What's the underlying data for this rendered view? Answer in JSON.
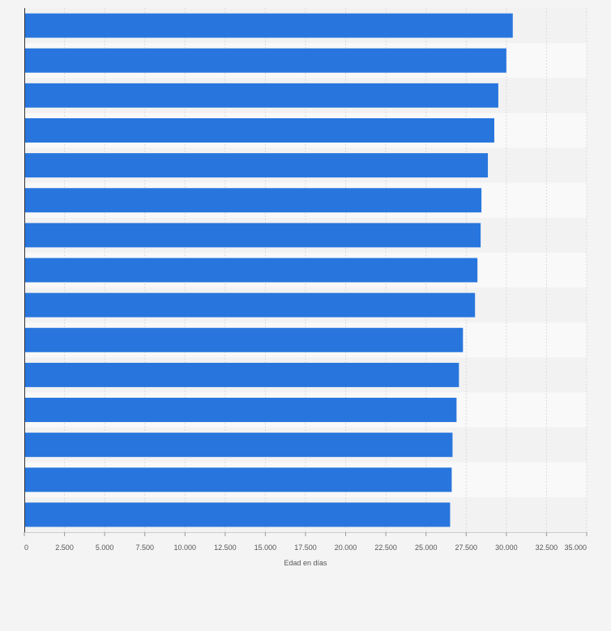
{
  "chart_data": {
    "type": "bar",
    "orientation": "horizontal",
    "categories": [
      "",
      "",
      "",
      "",
      "",
      "",
      "",
      "",
      "",
      "",
      "",
      "",
      "",
      "",
      ""
    ],
    "values": [
      30400,
      30000,
      29500,
      29250,
      28850,
      28450,
      28400,
      28200,
      28050,
      27300,
      27050,
      26900,
      26650,
      26600,
      26500
    ],
    "xlabel": "Edad en días",
    "ylabel": "",
    "xlim": [
      0,
      35000
    ],
    "xticks": [
      0,
      2500,
      5000,
      7500,
      10000,
      12500,
      15000,
      17500,
      20000,
      22500,
      25000,
      27500,
      30000,
      32500,
      35000
    ],
    "xtick_labels": [
      "0",
      "2.500",
      "5.000",
      "7.500",
      "10.000",
      "12.500",
      "15.000",
      "17.500",
      "20.000",
      "22.500",
      "25.000",
      "27.500",
      "30.000",
      "32.500",
      "35.000"
    ],
    "grid": true,
    "legend": "none",
    "colors": {
      "bar": "#2876dd",
      "background": "#f4f4f4",
      "band_light": "#f9f9f9",
      "band_dark": "#f2f2f2",
      "grid": "#dcdcdc",
      "axis": "#333333",
      "text": "#555555"
    }
  }
}
